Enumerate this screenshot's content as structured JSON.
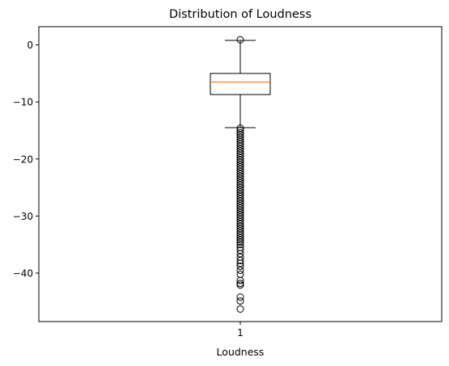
{
  "chart_data": {
    "type": "boxplot",
    "title": "Distribution of Loudness",
    "xlabel": "Loudness",
    "ylabel": "",
    "categories": [
      "1"
    ],
    "ylim": [
      -48.5,
      3.2
    ],
    "yticks": [
      0,
      -10,
      -20,
      -30,
      -40
    ],
    "grid": false,
    "box": {
      "q1": -8.7,
      "median": -6.5,
      "q3": -5.0,
      "whisker_low": -14.5,
      "whisker_high": 0.8
    },
    "outliers": [
      0.9,
      -14.6,
      -15.0,
      -15.4,
      -15.8,
      -16.2,
      -16.6,
      -17.0,
      -17.4,
      -17.8,
      -18.2,
      -18.6,
      -19.0,
      -19.4,
      -19.8,
      -20.2,
      -20.6,
      -21.0,
      -21.4,
      -21.8,
      -22.2,
      -22.6,
      -23.0,
      -23.4,
      -23.8,
      -24.2,
      -24.6,
      -25.0,
      -25.4,
      -25.8,
      -26.2,
      -26.6,
      -27.0,
      -27.4,
      -27.8,
      -28.2,
      -28.6,
      -29.0,
      -29.4,
      -29.8,
      -30.2,
      -30.6,
      -31.0,
      -31.4,
      -31.8,
      -32.2,
      -32.6,
      -33.0,
      -33.4,
      -33.8,
      -34.2,
      -34.6,
      -35.0,
      -35.5,
      -36.0,
      -36.6,
      -37.2,
      -37.8,
      -38.3,
      -38.8,
      -39.5,
      -40.2,
      -41.3,
      -41.8,
      -42.1,
      -44.2,
      -44.9,
      -46.3
    ]
  }
}
